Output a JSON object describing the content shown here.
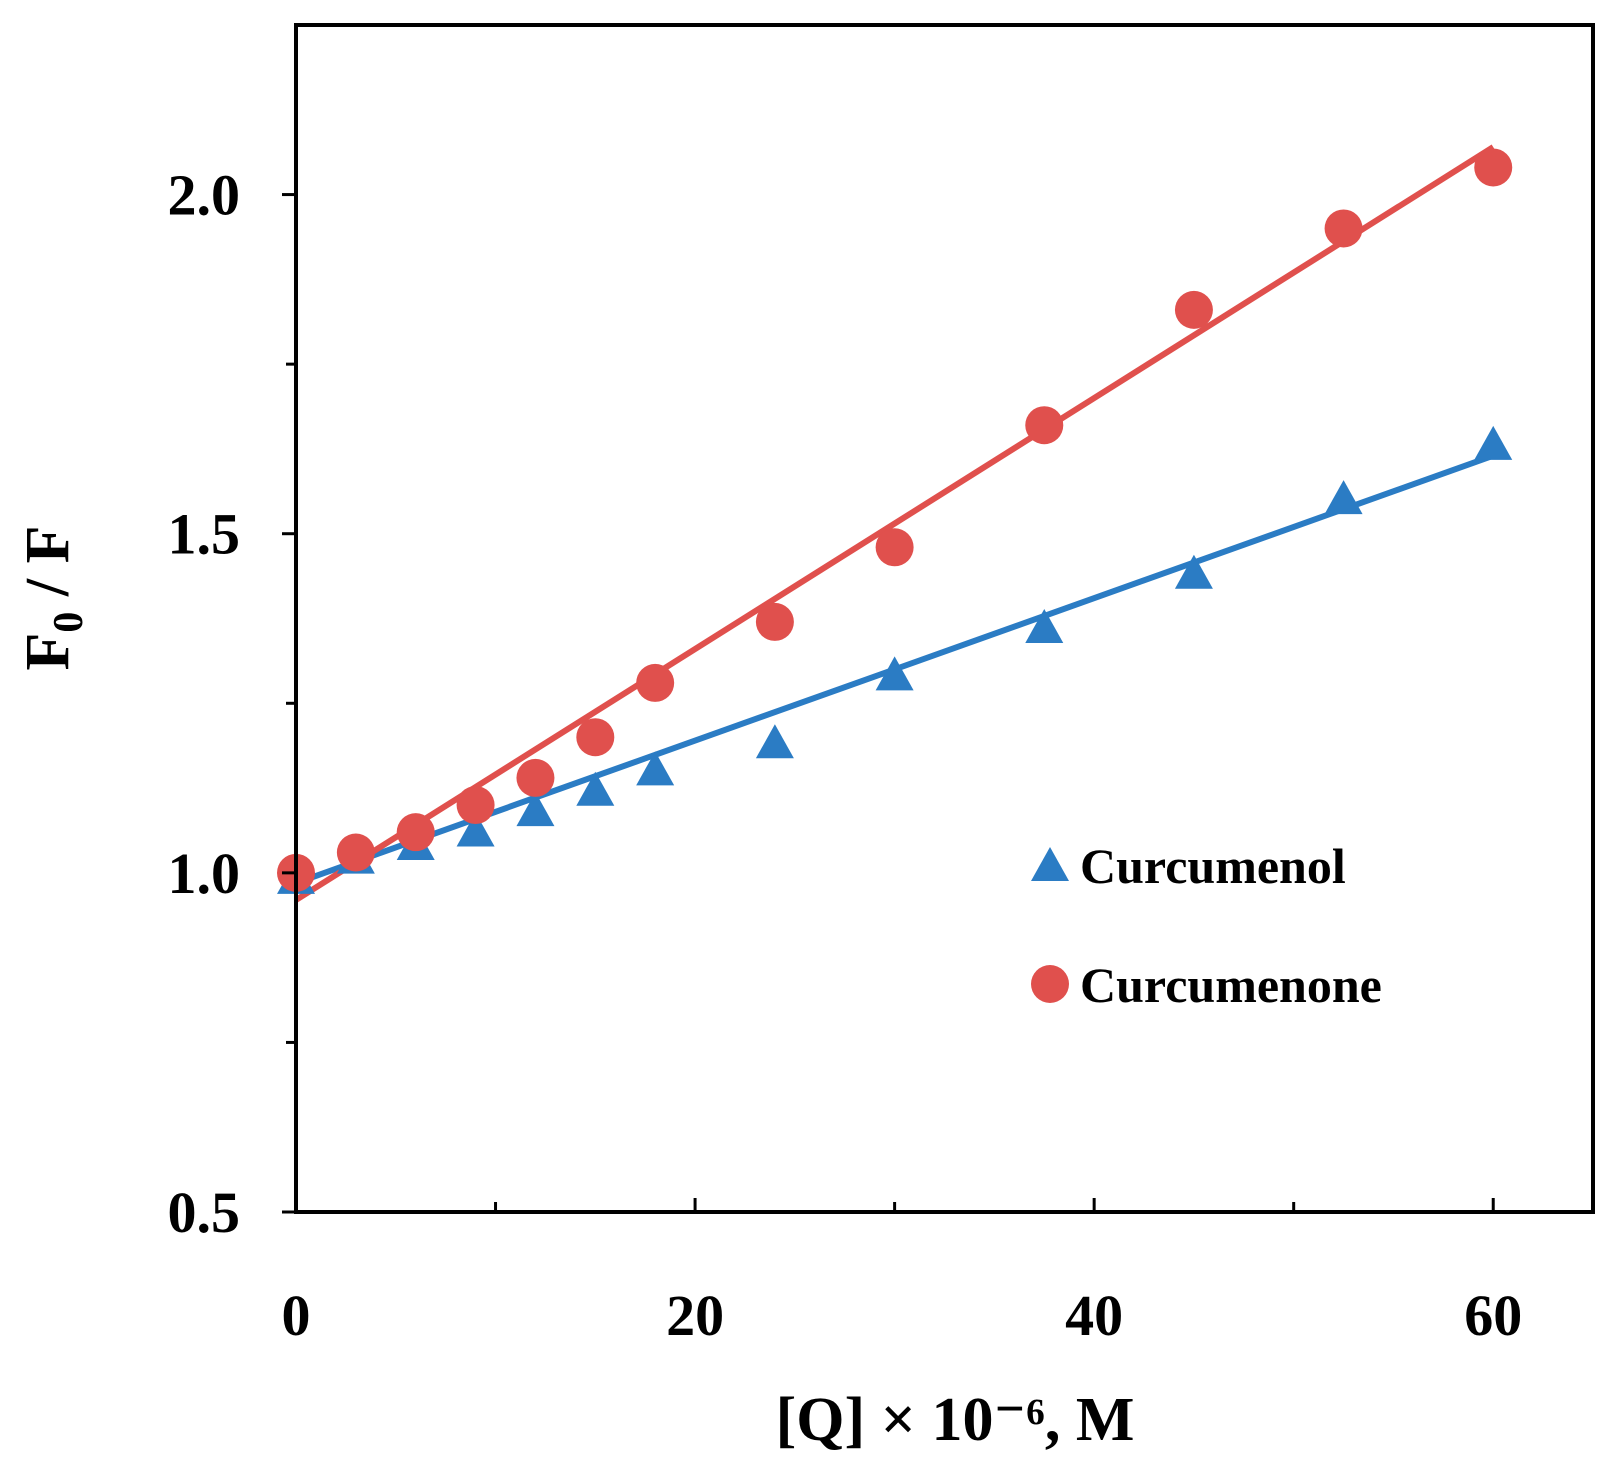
{
  "chart_data": {
    "type": "scatter",
    "title": "",
    "xlabel": "[Q] × 10⁻⁶, M",
    "ylabel_main": "F",
    "ylabel_sub": "0",
    "ylabel_rest": " / F",
    "xlim": [
      0,
      65
    ],
    "ylim": [
      0.5,
      2.25
    ],
    "x_ticks": [
      0,
      20,
      40,
      60
    ],
    "x_minor_ticks": [
      10,
      30,
      50
    ],
    "x_tick_labels": [
      "0",
      "20",
      "40",
      "60"
    ],
    "y_ticks": [
      0.5,
      1.0,
      1.5,
      2.0
    ],
    "y_minor_ticks": [
      0.75,
      1.25,
      1.75
    ],
    "y_tick_labels": [
      "0.5",
      "1.0",
      "1.5",
      "2.0"
    ],
    "grid": false,
    "legend_position": "right",
    "series": [
      {
        "name": "Curcumenol",
        "color": "#2b7cc4",
        "marker": "triangle",
        "x": [
          0,
          3,
          6,
          9,
          12,
          15,
          18,
          24,
          30,
          37.5,
          45,
          52.5,
          60
        ],
        "y": [
          0.99,
          1.02,
          1.04,
          1.06,
          1.09,
          1.12,
          1.15,
          1.19,
          1.29,
          1.36,
          1.44,
          1.55,
          1.63
        ],
        "fit": {
          "x0": 0,
          "y0": 0.985,
          "x1": 60,
          "y1": 1.615
        }
      },
      {
        "name": "Curcumenone",
        "color": "#e0504d",
        "marker": "circle",
        "x": [
          0,
          3,
          6,
          9,
          12,
          15,
          18,
          24,
          30,
          37.5,
          45,
          52.5,
          60
        ],
        "y": [
          1.0,
          1.03,
          1.06,
          1.1,
          1.14,
          1.2,
          1.28,
          1.37,
          1.48,
          1.66,
          1.83,
          1.95,
          2.04
        ],
        "fit": {
          "x0": 0,
          "y0": 0.96,
          "x1": 60,
          "y1": 2.07
        }
      }
    ]
  }
}
